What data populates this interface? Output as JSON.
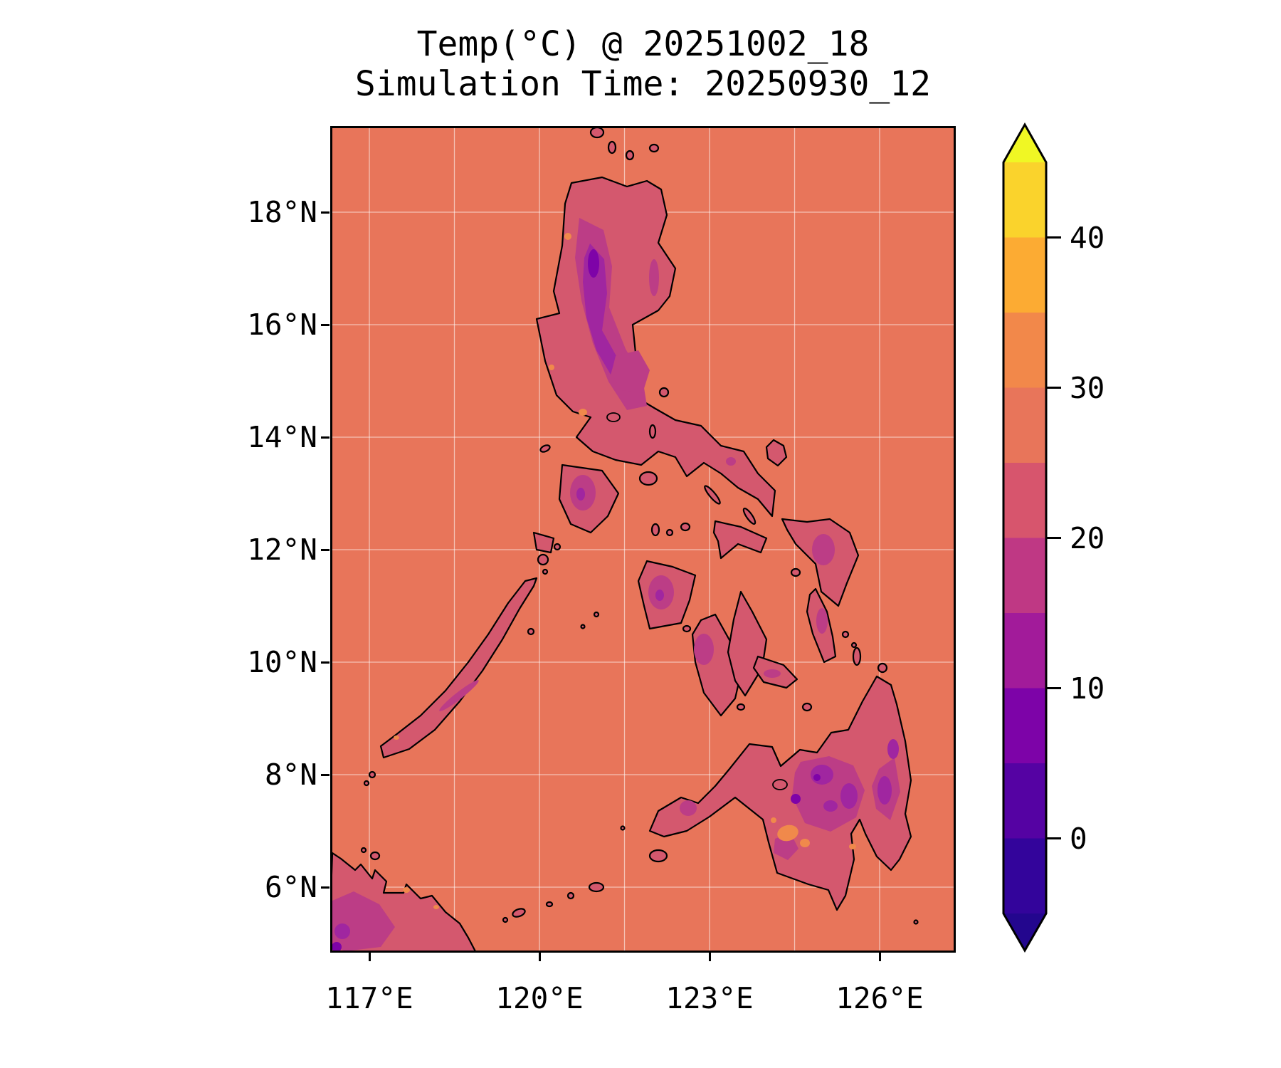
{
  "figure": {
    "title_line1": "Temp(°C) @ 20251002_18",
    "title_line2": "Simulation Time: 20250930_12"
  },
  "axes": {
    "x_ticks": [
      {
        "label": "117°E",
        "lon": 117
      },
      {
        "label": "120°E",
        "lon": 120
      },
      {
        "label": "123°E",
        "lon": 123
      },
      {
        "label": "126°E",
        "lon": 126
      }
    ],
    "y_ticks": [
      {
        "label": "18°N",
        "lat": 18
      },
      {
        "label": "16°N",
        "lat": 16
      },
      {
        "label": "14°N",
        "lat": 14
      },
      {
        "label": "12°N",
        "lat": 12
      },
      {
        "label": "10°N",
        "lat": 10
      },
      {
        "label": "8°N",
        "lat": 8
      },
      {
        "label": "6°N",
        "lat": 6
      }
    ],
    "grid_lons": [
      117,
      118.5,
      120,
      121.5,
      123,
      124.5,
      126
    ],
    "grid_lats": [
      18,
      16,
      14,
      12,
      10,
      8,
      6
    ]
  },
  "colorbar": {
    "ticks": [
      {
        "label": "40",
        "value": 40
      },
      {
        "label": "30",
        "value": 30
      },
      {
        "label": "20",
        "value": 20
      },
      {
        "label": "10",
        "value": 10
      },
      {
        "label": "0",
        "value": 0
      }
    ],
    "levels": [
      -5,
      0,
      5,
      10,
      15,
      20,
      25,
      30,
      35,
      40,
      45
    ],
    "band_colors": [
      "#33049b",
      "#5502a3",
      "#7d03a8",
      "#a21b9a",
      "#bf3884",
      "#d7556d",
      "#e8755a",
      "#f2884a",
      "#fcab33",
      "#fad32c"
    ],
    "under_color": "#23068e",
    "over_color": "#f0f724",
    "extend": "both"
  },
  "colors": {
    "ocean": "#e8755a",
    "land": "#d4586e",
    "magenta": "#bc3d86",
    "purple": "#a026a0",
    "deep": "#7e03a8",
    "orange": "#f0894b",
    "grid": "rgba(255,255,255,0.55)"
  },
  "chart_data": {
    "type": "heatmap",
    "subtype": "filled-contour-map",
    "title": "Temp(°C) @ 20251002_18",
    "subtitle": "Simulation Time: 20250930_12",
    "variable": "Temp (°C)",
    "valid_time": "20251002_18",
    "simulation_time": "20250930_12",
    "region": "Philippines archipelago with NE Borneo corner",
    "projection": "plate-carree",
    "x_axis": {
      "tick_labels": [
        "117°E",
        "120°E",
        "123°E",
        "126°E"
      ],
      "range_deg_east": [
        116.35,
        127.33
      ]
    },
    "y_axis": {
      "tick_labels": [
        "6°N",
        "8°N",
        "10°N",
        "12°N",
        "14°N",
        "16°N",
        "18°N"
      ],
      "range_deg_north": [
        4.8,
        19.5
      ]
    },
    "colorbar": {
      "tick_values": [
        0,
        10,
        20,
        30,
        40
      ],
      "contour_levels": [
        -5,
        0,
        5,
        10,
        15,
        20,
        25,
        30,
        35,
        40,
        45
      ],
      "colormap": "plasma",
      "extend": "both"
    },
    "field_summary": {
      "ocean_band_degC": "25-30",
      "lowland_land_band_degC": "20-25",
      "highland_bands_degC": "5-20 over Luzon Cordillera and central/eastern Mindanao",
      "warm_spots_degC": "30-35 patches over SW Mindanao interior, coastal fringes and NE Borneo coast"
    },
    "grid": "on, light lines every 1.5° longitude and 2° latitude"
  }
}
